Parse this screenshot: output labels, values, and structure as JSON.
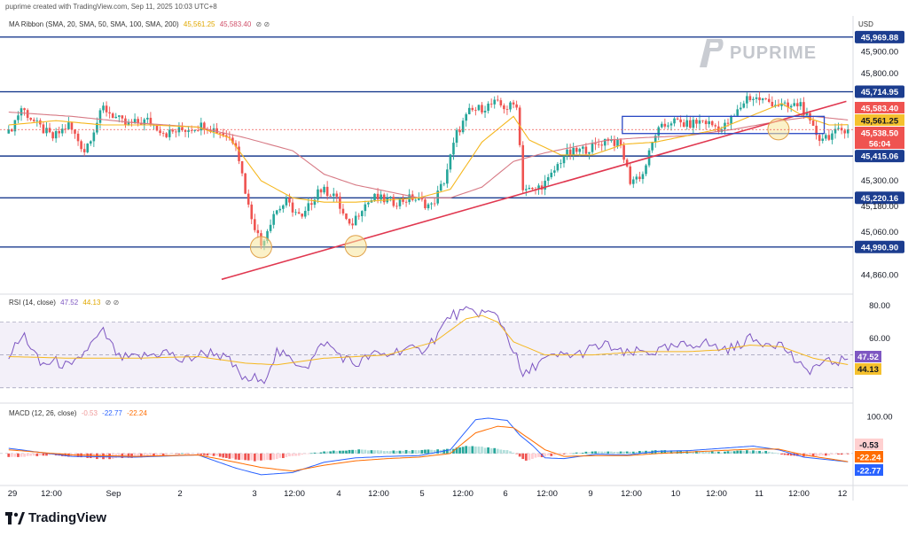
{
  "header": {
    "caption": "puprime created with TradingView.com, Sep 11, 2025 10:03 UTC+8",
    "currency": "USD"
  },
  "legends": {
    "ma": {
      "title": "MA Ribbon (SMA, 20, SMA, 50, SMA, 100, SMA, 200)",
      "v1": "45,561.25",
      "v2": "45,583.40",
      "icons": "⊘ ⊘"
    },
    "rsi": {
      "title": "RSI (14, close)",
      "v1": "47.52",
      "v2": "44.13",
      "icons": "⊘ ⊘"
    },
    "macd": {
      "title": "MACD (12, 26, close)",
      "v1": "-0.53",
      "v2": "-22.77",
      "v3": "-22.24"
    }
  },
  "watermark": {
    "text": "PUPRIME"
  },
  "branding": {
    "text": "TradingView"
  },
  "colors": {
    "up": "#26a69a",
    "down": "#ef5350",
    "level": "#1c3d8f",
    "trend": "#e0374f",
    "ma_fast": "#f5b71e",
    "ma_slow": "#d77a85",
    "rsi": "#7e57c2",
    "rsi_ma": "#f5b71e",
    "macd": "#2962ff",
    "signal": "#ff6d00",
    "box": "#2a48c4",
    "circle_fill": "#f7e69a"
  },
  "chart_data": [
    {
      "type": "candlestick",
      "name": "price",
      "ylim": [
        44800,
        46060
      ],
      "y_ticks": [
        "45,900.00",
        "45,800.00",
        "45,300.00",
        "45,180.00",
        "45,060.00",
        "44,860.00"
      ],
      "x_ticks": [
        "29",
        "12:00",
        "Sep",
        "2",
        "3",
        "12:00",
        "4",
        "12:00",
        "5",
        "12:00",
        "6",
        "12:00",
        "9",
        "12:00",
        "10",
        "12:00",
        "11",
        "12:00",
        "12"
      ],
      "support_resistance": [
        {
          "value": 45969.88,
          "label": "45,969.88"
        },
        {
          "value": 45714.95,
          "label": "45,714.95"
        },
        {
          "value": 45415.06,
          "label": "45,415.06"
        },
        {
          "value": 45220.16,
          "label": "45,220.16"
        },
        {
          "value": 44990.9,
          "label": "44,990.90"
        }
      ],
      "price_tags": [
        {
          "label": "45,583.40",
          "kind": "ma_slow"
        },
        {
          "label": "45,561.25",
          "kind": "ma_fast"
        },
        {
          "label": "45,538.50",
          "kind": "last"
        },
        {
          "label": "56:04",
          "kind": "countdown"
        }
      ],
      "key_points": [
        [
          0,
          45520
        ],
        [
          4,
          45640
        ],
        [
          9,
          45560
        ],
        [
          14,
          45500
        ],
        [
          19,
          45560
        ],
        [
          24,
          45440
        ],
        [
          30,
          45640
        ],
        [
          37,
          45560
        ],
        [
          44,
          45580
        ],
        [
          50,
          45520
        ],
        [
          56,
          45540
        ],
        [
          62,
          45560
        ],
        [
          68,
          45520
        ],
        [
          72,
          45480
        ],
        [
          76,
          45180
        ],
        [
          80,
          45000
        ],
        [
          84,
          45150
        ],
        [
          88,
          45200
        ],
        [
          93,
          45120
        ],
        [
          98,
          45260
        ],
        [
          103,
          45240
        ],
        [
          108,
          45080
        ],
        [
          112,
          45180
        ],
        [
          116,
          45220
        ],
        [
          122,
          45200
        ],
        [
          128,
          45220
        ],
        [
          134,
          45180
        ],
        [
          138,
          45300
        ],
        [
          142,
          45520
        ],
        [
          146,
          45620
        ],
        [
          150,
          45640
        ],
        [
          154,
          45660
        ],
        [
          158,
          45640
        ],
        [
          161,
          45660
        ],
        [
          163,
          45270
        ],
        [
          166,
          45250
        ],
        [
          171,
          45300
        ],
        [
          176,
          45420
        ],
        [
          181,
          45440
        ],
        [
          186,
          45460
        ],
        [
          190,
          45500
        ],
        [
          194,
          45460
        ],
        [
          197,
          45300
        ],
        [
          201,
          45330
        ],
        [
          205,
          45520
        ],
        [
          210,
          45580
        ],
        [
          215,
          45560
        ],
        [
          220,
          45580
        ],
        [
          226,
          45540
        ],
        [
          230,
          45600
        ],
        [
          234,
          45690
        ],
        [
          238,
          45680
        ],
        [
          243,
          45660
        ],
        [
          247,
          45640
        ],
        [
          251,
          45660
        ],
        [
          254,
          45560
        ],
        [
          257,
          45500
        ],
        [
          262,
          45520
        ],
        [
          266,
          45550
        ]
      ],
      "ma_fast_points": [
        [
          0,
          45560
        ],
        [
          15,
          45580
        ],
        [
          30,
          45560
        ],
        [
          45,
          45560
        ],
        [
          60,
          45550
        ],
        [
          70,
          45500
        ],
        [
          80,
          45300
        ],
        [
          90,
          45220
        ],
        [
          100,
          45200
        ],
        [
          110,
          45200
        ],
        [
          120,
          45210
        ],
        [
          130,
          45220
        ],
        [
          140,
          45260
        ],
        [
          150,
          45480
        ],
        [
          160,
          45600
        ],
        [
          165,
          45490
        ],
        [
          175,
          45420
        ],
        [
          185,
          45420
        ],
        [
          195,
          45470
        ],
        [
          205,
          45480
        ],
        [
          215,
          45510
        ],
        [
          225,
          45540
        ],
        [
          235,
          45600
        ],
        [
          245,
          45660
        ],
        [
          252,
          45600
        ],
        [
          260,
          45560
        ],
        [
          266,
          45561.25
        ]
      ],
      "ma_slow_points": [
        [
          0,
          45620
        ],
        [
          20,
          45600
        ],
        [
          40,
          45570
        ],
        [
          60,
          45550
        ],
        [
          75,
          45500
        ],
        [
          90,
          45440
        ],
        [
          100,
          45330
        ],
        [
          110,
          45280
        ],
        [
          120,
          45250
        ],
        [
          130,
          45220
        ],
        [
          140,
          45220
        ],
        [
          150,
          45270
        ],
        [
          160,
          45390
        ],
        [
          170,
          45430
        ],
        [
          180,
          45460
        ],
        [
          190,
          45490
        ],
        [
          200,
          45500
        ],
        [
          215,
          45510
        ],
        [
          230,
          45540
        ],
        [
          245,
          45580
        ],
        [
          255,
          45600
        ],
        [
          266,
          45583.4
        ]
      ],
      "trendline": [
        [
          68,
          44840
        ],
        [
          266,
          45670
        ]
      ],
      "annotations": {
        "box": {
          "x": [
            195,
            259
          ],
          "y": [
            45520,
            45600
          ]
        },
        "circles": [
          {
            "x": 80,
            "y": 44990
          },
          {
            "x": 110,
            "y": 44995
          },
          {
            "x": 244,
            "y": 45540
          }
        ]
      }
    },
    {
      "type": "line",
      "name": "RSI",
      "ylim": [
        25,
        80
      ],
      "y_ticks": [
        "80.00",
        "60.00"
      ],
      "bands": [
        70,
        50,
        30
      ],
      "last_values": [
        "47.52",
        "44.13"
      ],
      "key_points": [
        [
          0,
          50
        ],
        [
          5,
          62
        ],
        [
          10,
          44
        ],
        [
          15,
          46
        ],
        [
          20,
          42
        ],
        [
          25,
          54
        ],
        [
          30,
          64
        ],
        [
          35,
          48
        ],
        [
          40,
          48
        ],
        [
          45,
          50
        ],
        [
          50,
          52
        ],
        [
          55,
          46
        ],
        [
          60,
          50
        ],
        [
          65,
          52
        ],
        [
          70,
          46
        ],
        [
          75,
          34
        ],
        [
          78,
          36
        ],
        [
          80,
          32
        ],
        [
          85,
          52
        ],
        [
          90,
          46
        ],
        [
          95,
          44
        ],
        [
          100,
          58
        ],
        [
          105,
          50
        ],
        [
          110,
          44
        ],
        [
          115,
          50
        ],
        [
          120,
          50
        ],
        [
          125,
          54
        ],
        [
          130,
          52
        ],
        [
          135,
          60
        ],
        [
          140,
          74
        ],
        [
          145,
          76
        ],
        [
          150,
          76
        ],
        [
          155,
          74
        ],
        [
          158,
          62
        ],
        [
          161,
          48
        ],
        [
          163,
          36
        ],
        [
          168,
          46
        ],
        [
          172,
          48
        ],
        [
          176,
          50
        ],
        [
          180,
          50
        ],
        [
          185,
          54
        ],
        [
          190,
          56
        ],
        [
          195,
          50
        ],
        [
          200,
          52
        ],
        [
          205,
          52
        ],
        [
          210,
          54
        ],
        [
          215,
          56
        ],
        [
          220,
          58
        ],
        [
          225,
          54
        ],
        [
          230,
          54
        ],
        [
          234,
          60
        ],
        [
          238,
          58
        ],
        [
          242,
          58
        ],
        [
          245,
          56
        ],
        [
          248,
          50
        ],
        [
          252,
          40
        ],
        [
          257,
          44
        ],
        [
          262,
          46
        ],
        [
          266,
          47.52
        ]
      ],
      "ma_points": [
        [
          0,
          49
        ],
        [
          20,
          48
        ],
        [
          40,
          48
        ],
        [
          60,
          49
        ],
        [
          75,
          45
        ],
        [
          85,
          44
        ],
        [
          100,
          48
        ],
        [
          120,
          50
        ],
        [
          135,
          58
        ],
        [
          145,
          72
        ],
        [
          150,
          74
        ],
        [
          155,
          70
        ],
        [
          160,
          58
        ],
        [
          170,
          50
        ],
        [
          185,
          50
        ],
        [
          200,
          52
        ],
        [
          215,
          52
        ],
        [
          225,
          53
        ],
        [
          235,
          56
        ],
        [
          245,
          55
        ],
        [
          255,
          48
        ],
        [
          266,
          44.13
        ]
      ]
    },
    {
      "type": "bar+line",
      "name": "MACD",
      "ylim": [
        -80,
        125
      ],
      "y_ticks": [
        "100.00"
      ],
      "last_values": [
        "-0.53",
        "-22.24",
        "-22.77"
      ],
      "histogram_points": [
        [
          0,
          -10
        ],
        [
          15,
          -5
        ],
        [
          30,
          -15
        ],
        [
          45,
          -8
        ],
        [
          55,
          0
        ],
        [
          65,
          -6
        ],
        [
          72,
          -16
        ],
        [
          78,
          -20
        ],
        [
          84,
          -16
        ],
        [
          90,
          -8
        ],
        [
          100,
          5
        ],
        [
          110,
          10
        ],
        [
          120,
          8
        ],
        [
          130,
          8
        ],
        [
          140,
          12
        ],
        [
          145,
          20
        ],
        [
          150,
          18
        ],
        [
          155,
          12
        ],
        [
          158,
          8
        ],
        [
          161,
          -2
        ],
        [
          164,
          -20
        ],
        [
          168,
          -10
        ],
        [
          176,
          -2
        ],
        [
          186,
          6
        ],
        [
          196,
          4
        ],
        [
          206,
          8
        ],
        [
          216,
          6
        ],
        [
          226,
          4
        ],
        [
          232,
          8
        ],
        [
          240,
          6
        ],
        [
          246,
          -4
        ],
        [
          252,
          -8
        ],
        [
          258,
          -6
        ],
        [
          266,
          -0.53
        ]
      ],
      "macd_points": [
        [
          0,
          14
        ],
        [
          20,
          -8
        ],
        [
          40,
          -10
        ],
        [
          60,
          -4
        ],
        [
          72,
          -40
        ],
        [
          80,
          -58
        ],
        [
          90,
          -52
        ],
        [
          100,
          -24
        ],
        [
          110,
          -12
        ],
        [
          120,
          -8
        ],
        [
          130,
          -6
        ],
        [
          140,
          10
        ],
        [
          148,
          92
        ],
        [
          152,
          96
        ],
        [
          158,
          90
        ],
        [
          162,
          50
        ],
        [
          166,
          22
        ],
        [
          170,
          -12
        ],
        [
          176,
          -14
        ],
        [
          186,
          -2
        ],
        [
          196,
          -4
        ],
        [
          206,
          6
        ],
        [
          216,
          8
        ],
        [
          226,
          14
        ],
        [
          236,
          20
        ],
        [
          244,
          10
        ],
        [
          252,
          -10
        ],
        [
          266,
          -22.77
        ]
      ],
      "signal_points": [
        [
          0,
          10
        ],
        [
          20,
          -4
        ],
        [
          40,
          -8
        ],
        [
          60,
          -4
        ],
        [
          72,
          -24
        ],
        [
          80,
          -38
        ],
        [
          90,
          -48
        ],
        [
          100,
          -32
        ],
        [
          110,
          -20
        ],
        [
          120,
          -14
        ],
        [
          130,
          -10
        ],
        [
          140,
          0
        ],
        [
          148,
          56
        ],
        [
          155,
          74
        ],
        [
          160,
          70
        ],
        [
          165,
          40
        ],
        [
          170,
          10
        ],
        [
          176,
          -8
        ],
        [
          186,
          -6
        ],
        [
          196,
          -6
        ],
        [
          206,
          0
        ],
        [
          216,
          4
        ],
        [
          226,
          8
        ],
        [
          236,
          12
        ],
        [
          244,
          12
        ],
        [
          252,
          -4
        ],
        [
          266,
          -22.24
        ]
      ]
    }
  ]
}
